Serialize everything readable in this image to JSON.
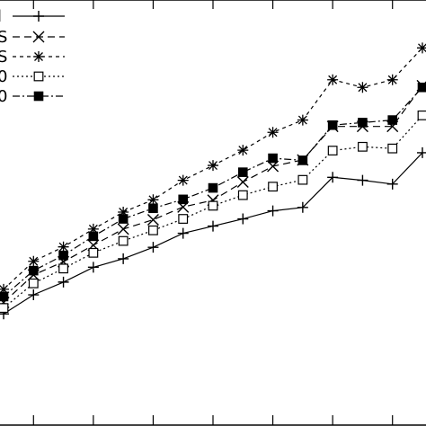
{
  "chart_data": {
    "type": "line",
    "title": "",
    "xlabel": "",
    "ylabel": "",
    "x": [
      1,
      2,
      3,
      4,
      5,
      6,
      7,
      8,
      9,
      10,
      11,
      12,
      13,
      14,
      15
    ],
    "xlim": [
      1,
      15
    ],
    "ylim": [
      0,
      1
    ],
    "grid": false,
    "legend": "top-left",
    "series": [
      {
        "name": "l",
        "marker": "plus",
        "dash": "solid",
        "values": [
          0.26,
          0.305,
          0.335,
          0.37,
          0.39,
          0.417,
          0.45,
          0.467,
          0.484,
          0.503,
          0.511,
          0.582,
          0.575,
          0.566,
          0.64
        ]
      },
      {
        "name": "S",
        "marker": "x",
        "dash": "dashed",
        "values": [
          0.287,
          0.352,
          0.383,
          0.422,
          0.46,
          0.482,
          0.512,
          0.528,
          0.571,
          0.608,
          0.623,
          0.702,
          0.702,
          0.702,
          0.798
        ]
      },
      {
        "name": "S",
        "marker": "star",
        "dash": "dotted",
        "values": [
          0.318,
          0.384,
          0.418,
          0.46,
          0.5,
          0.529,
          0.575,
          0.61,
          0.646,
          0.688,
          0.717,
          0.812,
          0.794,
          0.812,
          0.887
        ]
      },
      {
        "name": "0",
        "marker": "square-open",
        "dash": "dotted-fine",
        "values": [
          0.274,
          0.332,
          0.367,
          0.404,
          0.432,
          0.457,
          0.484,
          0.515,
          0.54,
          0.56,
          0.576,
          0.645,
          0.654,
          0.65,
          0.728
        ]
      },
      {
        "name": "0",
        "marker": "square-filled",
        "dash": "dashdot",
        "values": [
          0.301,
          0.362,
          0.398,
          0.443,
          0.484,
          0.509,
          0.53,
          0.557,
          0.594,
          0.627,
          0.622,
          0.705,
          0.711,
          0.717,
          0.794
        ]
      }
    ]
  }
}
